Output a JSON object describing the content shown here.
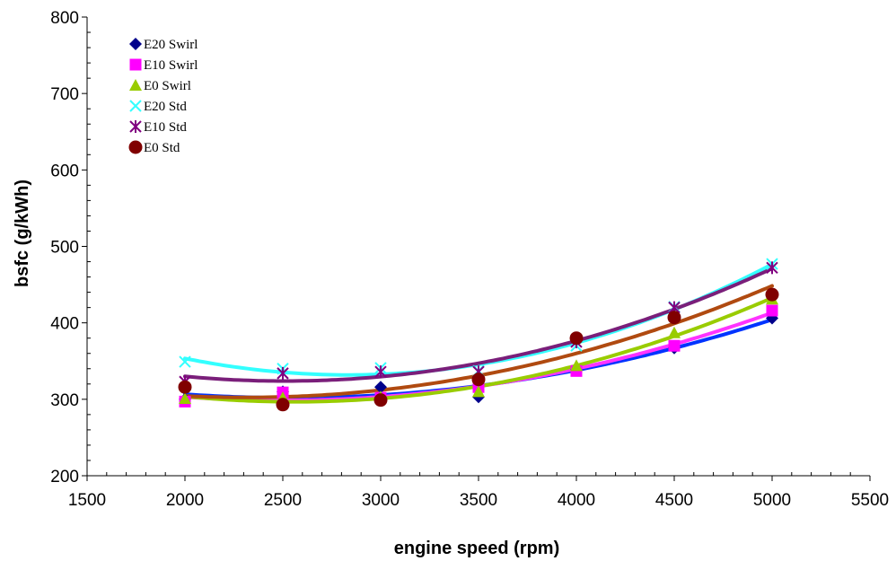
{
  "chart_data": {
    "type": "scatter",
    "xlabel": "engine speed (rpm)",
    "ylabel": "bsfc (g/kWh)",
    "xlim": [
      1500,
      5500
    ],
    "ylim": [
      200,
      800
    ],
    "xticks": [
      1500,
      2000,
      2500,
      3000,
      3500,
      4000,
      4500,
      5000,
      5500
    ],
    "yticks": [
      200,
      300,
      400,
      500,
      600,
      700,
      800
    ],
    "grid": false,
    "legend_position": "top-left",
    "trendline": "polynomial order 2",
    "x": [
      2000,
      2500,
      3000,
      3500,
      4000,
      4500,
      5000
    ],
    "series": [
      {
        "name": "E20 Swirl",
        "marker": "diamond",
        "color": "#00008b",
        "line_color": "#0033ff",
        "values": [
          300,
          310,
          316,
          303,
          339,
          367,
          406
        ]
      },
      {
        "name": "E10 Swirl",
        "marker": "square",
        "color": "#ff00ff",
        "line_color": "#ff33ff",
        "values": [
          297,
          309,
          302,
          316,
          337,
          370,
          416
        ]
      },
      {
        "name": "E0 Swirl",
        "marker": "triangle",
        "color": "#99cc00",
        "line_color": "#99cc00",
        "values": [
          301,
          302,
          303,
          310,
          344,
          387,
          431
        ]
      },
      {
        "name": "E20 Std",
        "marker": "x",
        "color": "#33ffff",
        "line_color": "#33ffff",
        "values": [
          349,
          340,
          341,
          337,
          370,
          421,
          477
        ]
      },
      {
        "name": "E10 Std",
        "marker": "star",
        "color": "#800080",
        "line_color": "#7a1f7a",
        "values": [
          323,
          334,
          336,
          336,
          375,
          420,
          472
        ]
      },
      {
        "name": "E0 Std",
        "marker": "circle",
        "color": "#800000",
        "line_color": "#b04a10",
        "values": [
          316,
          293,
          299,
          326,
          380,
          407,
          437
        ]
      }
    ]
  }
}
